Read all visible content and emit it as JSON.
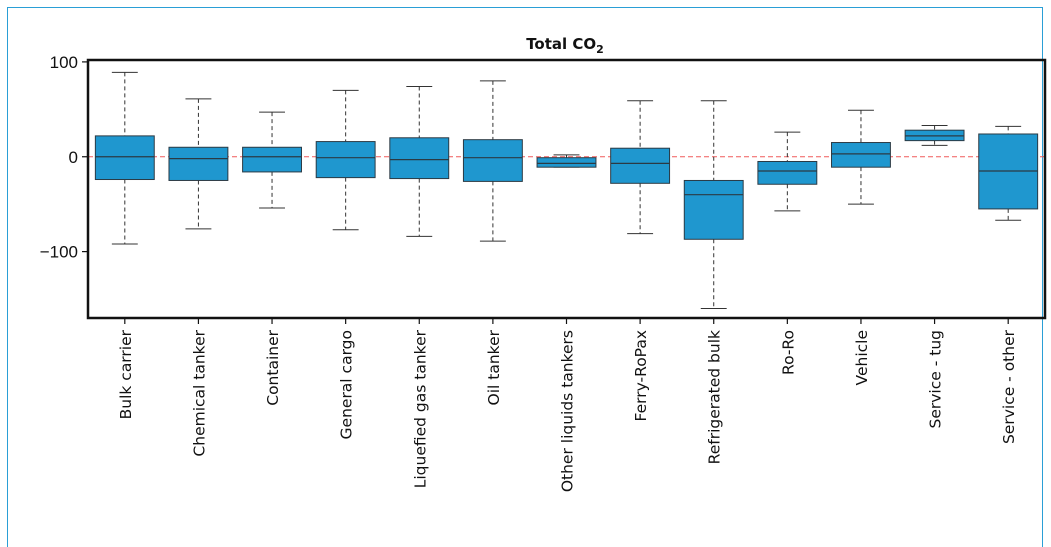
{
  "chart_data": {
    "type": "box",
    "title": "Total CO",
    "title_subscript": "2",
    "xlabel": "",
    "ylabel": "",
    "ylim": [
      -170,
      102
    ],
    "yticks": [
      100,
      0,
      -100
    ],
    "ytick_labels": [
      "100",
      "0",
      "−100"
    ],
    "reference_line": {
      "y": 0,
      "style": "dashed",
      "color": "#f05a5a"
    },
    "box_color": "#1f97cf",
    "categories": [
      "Bulk carrier",
      "Chemical tanker",
      "Container",
      "General cargo",
      "Liquefied gas tanker",
      "Oil tanker",
      "Other liquids tankers",
      "Ferry-RoPax",
      "Refrigerated bulk",
      "Ro-Ro",
      "Vehicle",
      "Service - tug",
      "Service - other"
    ],
    "boxes": [
      {
        "whisker_low": -92,
        "q1": -24,
        "median": 0,
        "q3": 22,
        "whisker_high": 89
      },
      {
        "whisker_low": -76,
        "q1": -25,
        "median": -2,
        "q3": 10,
        "whisker_high": 61
      },
      {
        "whisker_low": -54,
        "q1": -16,
        "median": 0,
        "q3": 10,
        "whisker_high": 47
      },
      {
        "whisker_low": -77,
        "q1": -22,
        "median": -1,
        "q3": 16,
        "whisker_high": 70
      },
      {
        "whisker_low": -84,
        "q1": -23,
        "median": -3,
        "q3": 20,
        "whisker_high": 74
      },
      {
        "whisker_low": -89,
        "q1": -26,
        "median": -1,
        "q3": 18,
        "whisker_high": 80
      },
      {
        "whisker_low": -11,
        "q1": -11,
        "median": -7,
        "q3": -1,
        "whisker_high": 2
      },
      {
        "whisker_low": -81,
        "q1": -28,
        "median": -7,
        "q3": 9,
        "whisker_high": 59
      },
      {
        "whisker_low": -160,
        "q1": -87,
        "median": -40,
        "q3": -25,
        "whisker_high": 59
      },
      {
        "whisker_low": -57,
        "q1": -29,
        "median": -15,
        "q3": -5,
        "whisker_high": 26
      },
      {
        "whisker_low": -50,
        "q1": -11,
        "median": 3,
        "q3": 15,
        "whisker_high": 49
      },
      {
        "whisker_low": 12,
        "q1": 17,
        "median": 22,
        "q3": 28,
        "whisker_high": 33
      },
      {
        "whisker_low": -67,
        "q1": -55,
        "median": -15,
        "q3": 24,
        "whisker_high": 32
      }
    ]
  }
}
